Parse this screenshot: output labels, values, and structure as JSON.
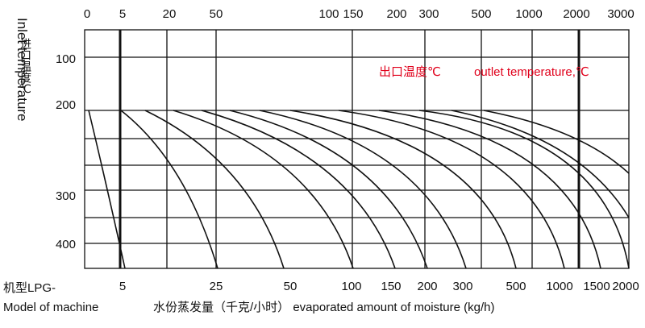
{
  "top_axis": {
    "labels": [
      "0",
      "5",
      "20",
      "50",
      "100",
      "150",
      "200",
      "300",
      "500",
      "1000",
      "2000",
      "3000"
    ]
  },
  "left_axis": {
    "title_cn": "进口温度℃",
    "title_en": "Inlet temperature",
    "labels": [
      "100",
      "200",
      "300",
      "400"
    ]
  },
  "annotation": {
    "cn": "出口温度℃",
    "en": "outlet temperature,℃"
  },
  "bottom_axis": {
    "model_cn": "机型LPG-",
    "model_en": "Model of machine",
    "caption": "水份蒸发量（千克/小时） evaporated amount of moisture (kg/h)",
    "labels": [
      "5",
      "25",
      "50",
      "100",
      "150",
      "200",
      "300",
      "500",
      "1000",
      "1500",
      "2000"
    ]
  }
}
